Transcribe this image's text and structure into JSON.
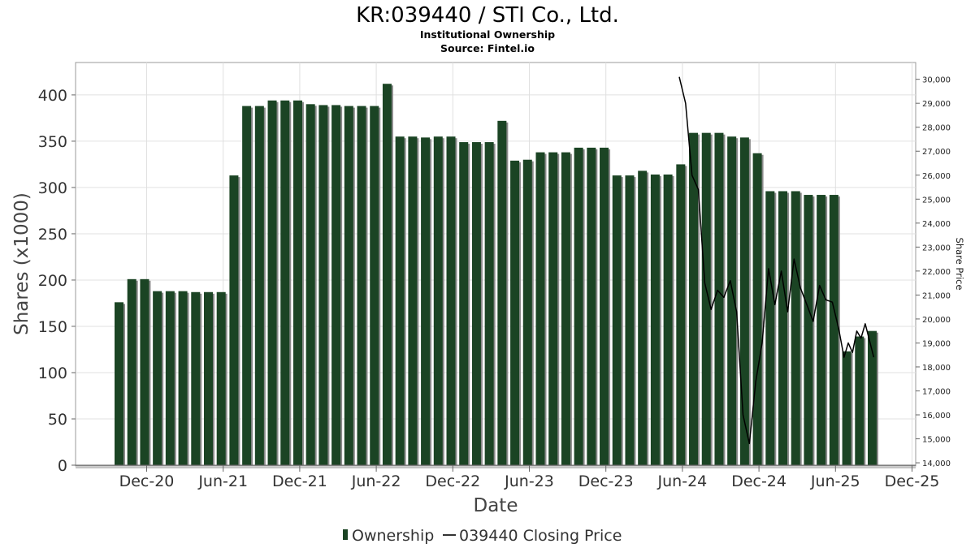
{
  "chart_data": {
    "type": "bar",
    "title": "KR:039440 / STI Co., Ltd.",
    "subtitle": "Institutional Ownership",
    "source": "Source: Fintel.io",
    "xlabel": "Date",
    "ylabel": "Shares (x1000)",
    "y2label": "Share Price",
    "ylim": [
      0,
      435
    ],
    "y2lim": [
      13900,
      30700
    ],
    "yticks": [
      0,
      50,
      100,
      150,
      200,
      250,
      300,
      350,
      400
    ],
    "y2ticks": [
      14000,
      15000,
      16000,
      17000,
      18000,
      19000,
      20000,
      21000,
      22000,
      23000,
      24000,
      25000,
      26000,
      27000,
      28000,
      29000,
      30000
    ],
    "y2tick_labels": [
      "14,000",
      "15,000",
      "16,000",
      "17,000",
      "18,000",
      "19,000",
      "20,000",
      "21,000",
      "22,000",
      "23,000",
      "24,000",
      "25,000",
      "26,000",
      "27,000",
      "28,000",
      "29,000",
      "30,000"
    ],
    "xticks": [
      "Dec-20",
      "Jun-21",
      "Dec-21",
      "Jun-22",
      "Dec-22",
      "Jun-23",
      "Dec-23",
      "Jun-24",
      "Dec-24",
      "Jun-25",
      "Dec-25"
    ],
    "grid": true,
    "legend_position": "bottom-center",
    "series": [
      {
        "name": "Ownership",
        "type": "bar",
        "color": "#1b4424",
        "values": [
          176,
          201,
          201,
          188,
          188,
          188,
          187,
          187,
          187,
          313,
          388,
          388,
          394,
          394,
          394,
          390,
          389,
          389,
          388,
          388,
          388,
          412,
          355,
          355,
          354,
          355,
          355,
          349,
          349,
          349,
          372,
          329,
          330,
          338,
          338,
          338,
          343,
          343,
          343,
          313,
          313,
          318,
          314,
          314,
          325,
          359,
          359,
          359,
          355,
          354,
          337,
          296,
          296,
          296,
          292,
          292,
          292,
          123,
          139,
          145
        ]
      },
      {
        "name": "039440 Closing Price",
        "type": "line",
        "color": "#000000",
        "points": [
          {
            "x": "2024-06",
            "y": 30100
          },
          {
            "x": "2024-06",
            "y": 29000
          },
          {
            "x": "2024-07",
            "y": 26000
          },
          {
            "x": "2024-07",
            "y": 25400
          },
          {
            "x": "2024-08",
            "y": 21500
          },
          {
            "x": "2024-08",
            "y": 20400
          },
          {
            "x": "2024-09",
            "y": 21200
          },
          {
            "x": "2024-09",
            "y": 20900
          },
          {
            "x": "2024-10",
            "y": 21600
          },
          {
            "x": "2024-10",
            "y": 20300
          },
          {
            "x": "2024-11",
            "y": 16000
          },
          {
            "x": "2024-11",
            "y": 14800
          },
          {
            "x": "2024-12",
            "y": 17400
          },
          {
            "x": "2024-12",
            "y": 19000
          },
          {
            "x": "2025-01",
            "y": 22100
          },
          {
            "x": "2025-01",
            "y": 20600
          },
          {
            "x": "2025-02",
            "y": 22000
          },
          {
            "x": "2025-02",
            "y": 20300
          },
          {
            "x": "2025-03",
            "y": 22500
          },
          {
            "x": "2025-03",
            "y": 21300
          },
          {
            "x": "2025-04",
            "y": 20600
          },
          {
            "x": "2025-04",
            "y": 19900
          },
          {
            "x": "2025-05",
            "y": 21400
          },
          {
            "x": "2025-05",
            "y": 20800
          },
          {
            "x": "2025-06",
            "y": 20700
          },
          {
            "x": "2025-06",
            "y": 19600
          },
          {
            "x": "2025-07",
            "y": 18400
          },
          {
            "x": "2025-07",
            "y": 19000
          },
          {
            "x": "2025-07",
            "y": 18600
          },
          {
            "x": "2025-08",
            "y": 19500
          },
          {
            "x": "2025-08",
            "y": 19200
          },
          {
            "x": "2025-08",
            "y": 19800
          },
          {
            "x": "2025-09",
            "y": 18400
          }
        ]
      }
    ]
  }
}
